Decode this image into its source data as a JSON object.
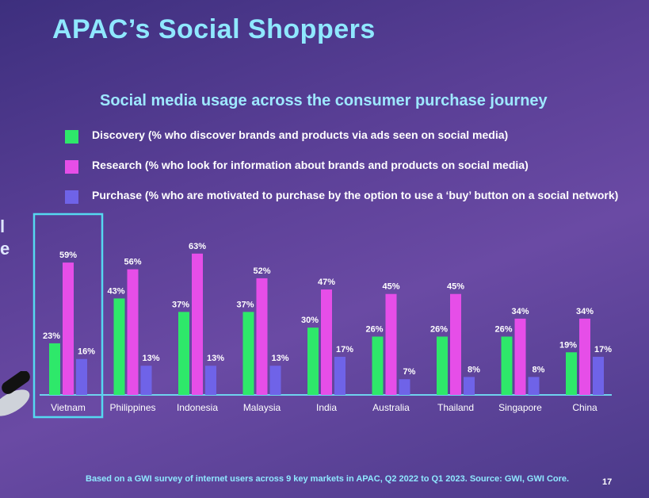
{
  "slide": {
    "title": "APAC’s Social Shoppers",
    "left_edge_text": [
      "l",
      "e"
    ],
    "footnote": "Based on a GWI survey of internet users across 9 key markets in APAC, Q2 2022 to Q1 2023. Source: GWI, GWI Core.",
    "page_number": "17"
  },
  "colors": {
    "discovery": "#2ee86a",
    "research": "#e64ee8",
    "purchase": "#6f63e8",
    "highlight_box": "#55d8f0",
    "axis": "#6fd3ee",
    "label_text": "#ffffff"
  },
  "chart_data": {
    "type": "bar",
    "title": "Social media usage across the consumer purchase journey",
    "categories": [
      "Vietnam",
      "Philippines",
      "Indonesia",
      "Malaysia",
      "India",
      "Australia",
      "Thailand",
      "Singapore",
      "China"
    ],
    "series": [
      {
        "name": "Discovery (% who discover brands and products via ads seen on social media)",
        "values": [
          23,
          43,
          37,
          37,
          30,
          26,
          26,
          26,
          19
        ]
      },
      {
        "name": "Research (% who look for information about brands and products on social media)",
        "values": [
          59,
          56,
          63,
          52,
          47,
          45,
          45,
          34,
          34
        ]
      },
      {
        "name": "Purchase (% who are motivated to purchase by the option to use a ‘buy’ button on a social network)",
        "values": [
          16,
          13,
          13,
          13,
          17,
          7,
          8,
          8,
          17
        ]
      }
    ],
    "value_suffix": "%",
    "ylim": [
      0,
      70
    ],
    "highlighted_category": "Vietnam",
    "legend_position": "top-left"
  }
}
